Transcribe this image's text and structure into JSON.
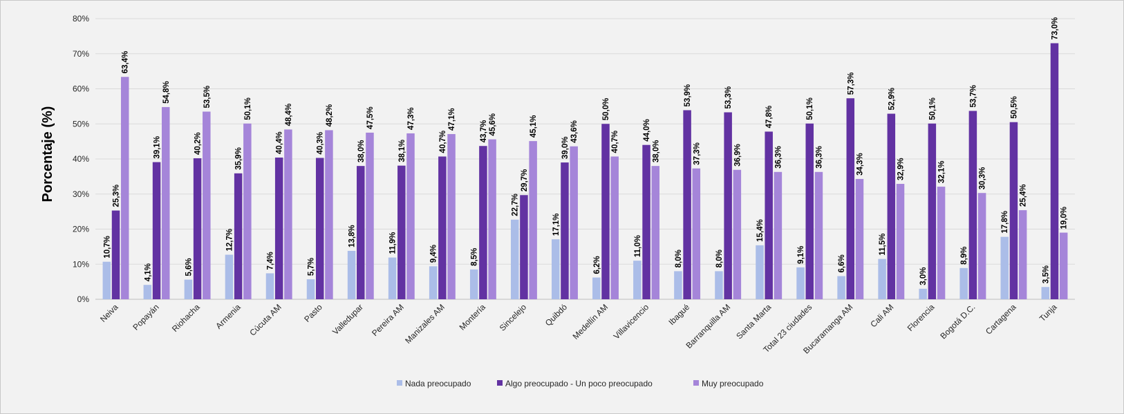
{
  "chart_data": {
    "type": "bar",
    "ylabel": "Porcentaje (%)",
    "ylim": [
      0,
      80
    ],
    "yticks": [
      0,
      10,
      20,
      30,
      40,
      50,
      60,
      70,
      80
    ],
    "ytick_labels": [
      "0%",
      "10%",
      "20%",
      "30%",
      "40%",
      "50%",
      "60%",
      "70%",
      "80%"
    ],
    "grid": true,
    "legend_position": "bottom",
    "categories": [
      "Neiva",
      "Popayán",
      "Riohacha",
      "Armenia",
      "Cúcuta AM",
      "Pasto",
      "Valledupar",
      "Pereira AM",
      "Manizales AM",
      "Montería",
      "Sincelejo",
      "Quibdó",
      "Medellín AM",
      "Villavicencio",
      "Ibagué",
      "Barranquilla AM",
      "Santa Marta",
      "Total 23 ciudades",
      "Bucaramanga AM",
      "Cali AM",
      "Florencia",
      "Bogotá D.C.",
      "Cartagena",
      "Tunja"
    ],
    "series": [
      {
        "name": "Nada preocupado",
        "color": "#abbde8",
        "values": [
          10.7,
          4.1,
          5.6,
          12.7,
          7.4,
          5.7,
          13.8,
          11.9,
          9.4,
          8.5,
          22.7,
          17.1,
          6.2,
          11.0,
          8.0,
          8.0,
          15.4,
          9.1,
          6.6,
          11.5,
          3.0,
          8.9,
          17.8,
          3.5
        ],
        "labels": [
          "10,7%",
          "4,1%",
          "5,6%",
          "12,7%",
          "7,4%",
          "5,7%",
          "13,8%",
          "11,9%",
          "9,4%",
          "8,5%",
          "22,7%",
          "17,1%",
          "6,2%",
          "11,0%",
          "8,0%",
          "8,0%",
          "15,4%",
          "9,1%",
          "6,6%",
          "11,5%",
          "3,0%",
          "8,9%",
          "17,8%",
          "3,5%"
        ]
      },
      {
        "name": "Algo preocupado - Un poco preocupado",
        "color": "#6232a2",
        "values": [
          25.3,
          39.1,
          40.2,
          35.9,
          40.4,
          40.3,
          38.0,
          38.1,
          40.7,
          43.7,
          29.7,
          39.0,
          50.0,
          44.0,
          53.9,
          53.3,
          47.8,
          50.1,
          57.3,
          52.9,
          50.1,
          53.7,
          50.5,
          73.0
        ],
        "labels": [
          "25,3%",
          "39,1%",
          "40,2%",
          "35,9%",
          "40,4%",
          "40,3%",
          "38,0%",
          "38,1%",
          "40,7%",
          "43,7%",
          "29,7%",
          "39,0%",
          "50,0%",
          "44,0%",
          "53,9%",
          "53,3%",
          "47,8%",
          "50,1%",
          "57,3%",
          "52,9%",
          "50,1%",
          "53,7%",
          "50,5%",
          "73,0%"
        ]
      },
      {
        "name": "Muy preocupado",
        "color": "#a585d9",
        "values": [
          63.4,
          54.8,
          53.5,
          50.1,
          48.4,
          48.2,
          47.5,
          47.3,
          47.1,
          45.6,
          45.1,
          43.6,
          40.7,
          38.0,
          37.3,
          36.9,
          36.3,
          36.3,
          34.3,
          32.9,
          32.1,
          30.3,
          25.4,
          19.0
        ],
        "labels": [
          "63,4%",
          "54,8%",
          "53,5%",
          "50,1%",
          "48,4%",
          "48,2%",
          "47,5%",
          "47,3%",
          "47,1%",
          "45,6%",
          "45,1%",
          "43,6%",
          "40,7%",
          "38,0%",
          "37,3%",
          "36,9%",
          "36,3%",
          "36,3%",
          "34,3%",
          "32,9%",
          "32,1%",
          "30,3%",
          "25,4%",
          "19,0%"
        ]
      }
    ]
  }
}
